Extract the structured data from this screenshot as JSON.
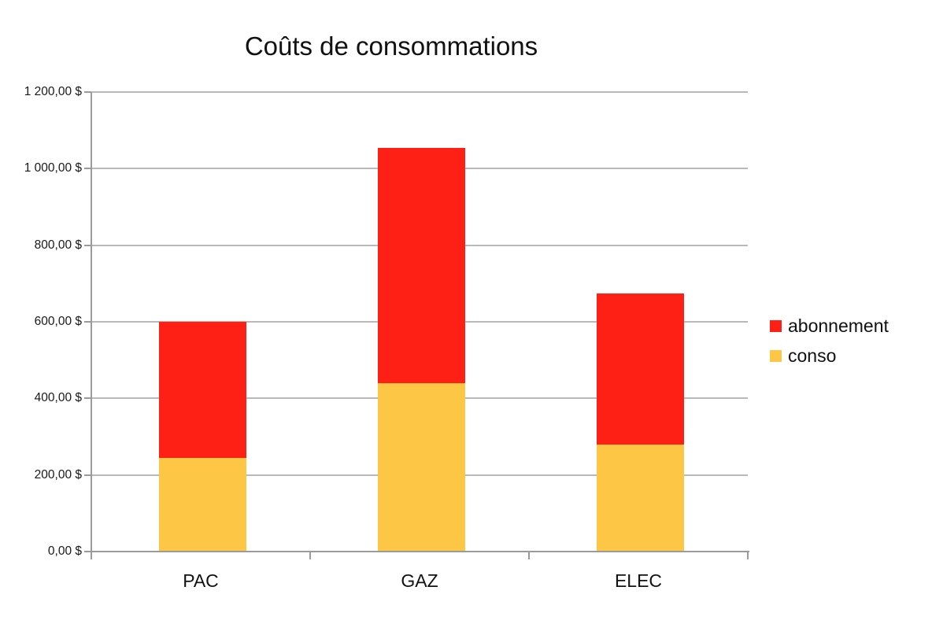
{
  "chart_data": {
    "type": "bar",
    "variant": "stacked-column",
    "title": "Coûts de consommations",
    "categories": [
      "PAC",
      "GAZ",
      "ELEC"
    ],
    "series": [
      {
        "name": "conso",
        "color": "#fdc645",
        "values": [
          245,
          440,
          280
        ]
      },
      {
        "name": "abonnement",
        "color": "#ff2015",
        "values": [
          355,
          615,
          395
        ]
      }
    ],
    "stack_totals": [
      600,
      1055,
      675
    ],
    "y_axis": {
      "min": 0,
      "max": 1200,
      "step": 200,
      "tick_labels": [
        "0,00 $",
        "200,00 $",
        "400,00 $",
        "600,00 $",
        "800,00 $",
        "1 000,00 $",
        "1 200,00 $"
      ],
      "currency": "$"
    },
    "x_axis": {
      "labels": [
        "PAC",
        "GAZ",
        "ELEC"
      ]
    },
    "legend": {
      "position": "right",
      "entries": [
        {
          "label": "abonnement",
          "color": "#ff2015"
        },
        {
          "label": "conso",
          "color": "#fdc645"
        }
      ]
    },
    "grid": true,
    "colors": {
      "grid": "#b9b9b9",
      "axis": "#9b9b9b",
      "text": "#111111",
      "background": "#ffffff"
    }
  }
}
